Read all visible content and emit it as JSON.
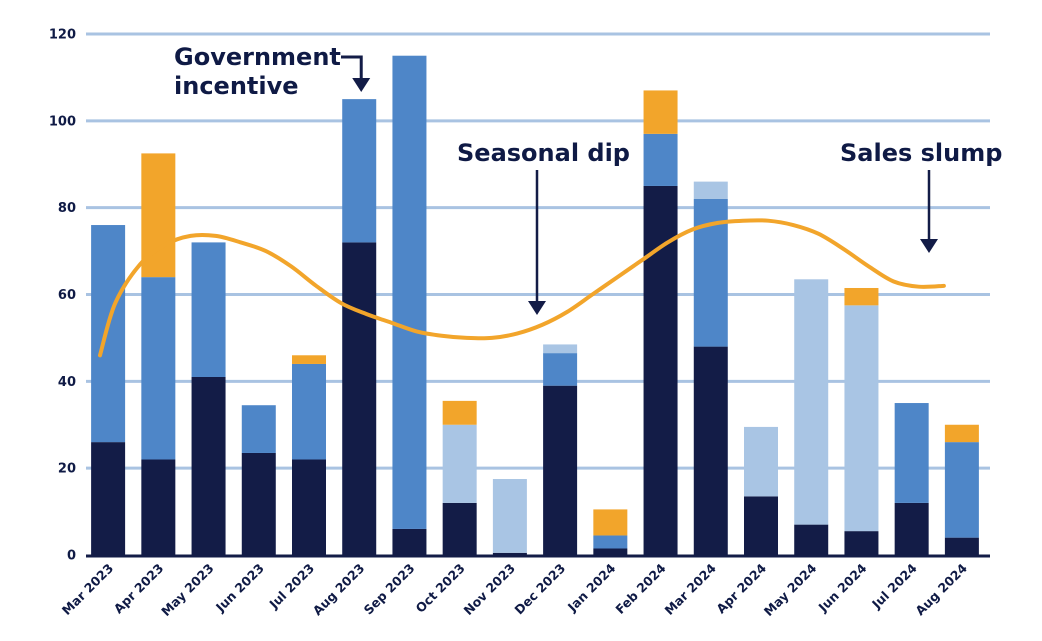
{
  "chart_data": {
    "type": "bar",
    "stacked": true,
    "categories": [
      "Mar 2023",
      "Apr 2023",
      "May 2023",
      "Jun 2023",
      "Jul 2023",
      "Aug 2023",
      "Sep 2023",
      "Oct 2023",
      "Nov 2023",
      "Dec 2023",
      "Jan 2024",
      "Feb 2024",
      "Mar 2024",
      "Apr 2024",
      "May 2024",
      "Jun 2024",
      "Jul 2024",
      "Aug 2024"
    ],
    "series": [
      {
        "color": "#131c47",
        "values": [
          26,
          22,
          41,
          23.5,
          22,
          72,
          6,
          12,
          0.5,
          39,
          1.5,
          85,
          48,
          13.5,
          7,
          5.5,
          12,
          4
        ]
      },
      {
        "color": "#4e86c8",
        "values": [
          50,
          42,
          31,
          11,
          22,
          33,
          109,
          0,
          0,
          7.5,
          3,
          12,
          34,
          0,
          0,
          0,
          23,
          22
        ]
      },
      {
        "color": "#a9c5e4",
        "values": [
          0,
          0,
          0,
          0,
          0,
          0,
          0,
          18,
          17,
          2,
          0,
          0,
          4,
          16,
          56.5,
          52,
          0,
          0
        ]
      },
      {
        "color": "#f2a52b",
        "values": [
          0,
          28.5,
          0,
          0,
          2,
          0,
          0,
          5.5,
          0,
          0,
          6,
          10,
          0,
          0,
          0,
          4,
          0,
          4
        ]
      }
    ],
    "trend_line": {
      "color": "#f2a52b",
      "x": [
        0,
        0.5,
        1,
        1.5,
        2,
        2.5,
        3,
        3.5,
        4,
        4.5,
        5,
        5.5,
        6,
        6.5,
        7,
        7.5,
        8,
        8.5,
        9,
        9.5,
        10,
        10.5,
        11,
        11.5,
        12,
        12.5,
        13,
        13.5,
        14,
        14.5,
        15,
        15.5,
        16,
        16.5,
        17
      ],
      "y": [
        46,
        58,
        67,
        71.5,
        73.5,
        73.5,
        72,
        70,
        66.5,
        62,
        58,
        55.5,
        53.5,
        51.5,
        50.5,
        50,
        50,
        51,
        53,
        56,
        60,
        64,
        68,
        72,
        75,
        76.5,
        77,
        77,
        76,
        74,
        70.5,
        66.5,
        63,
        61.8,
        62
      ]
    },
    "ylim": [
      0,
      120
    ],
    "yticks": [
      0,
      20,
      40,
      60,
      80,
      100,
      120
    ],
    "grid": true,
    "legend": "none",
    "xlabel": "",
    "ylabel": "",
    "title": "",
    "annotations": [
      {
        "lines": [
          "Government",
          "incentive"
        ],
        "target_index": 5,
        "target_value": 106
      },
      {
        "lines": [
          "Seasonal dip"
        ],
        "target_index": 8,
        "target_value": 55
      },
      {
        "lines": [
          "Sales slump"
        ],
        "target_index": 16,
        "target_value": 70
      }
    ]
  }
}
